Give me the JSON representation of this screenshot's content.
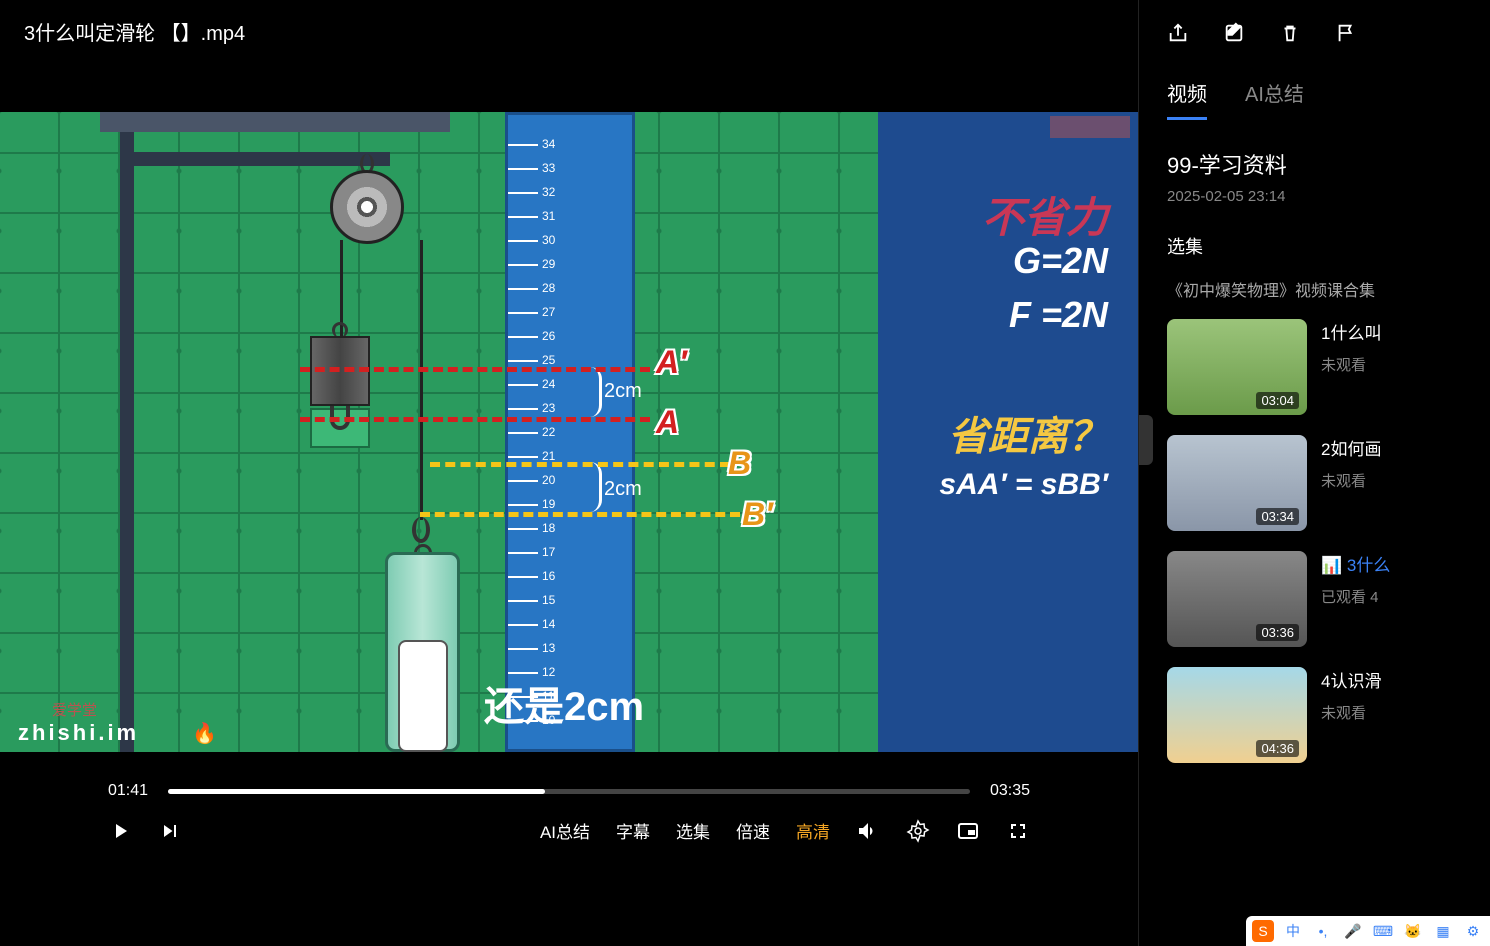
{
  "titlebar": {
    "title": "3什么叫定滑轮 【】.mp4"
  },
  "video": {
    "current_time": "01:41",
    "total_time": "03:35",
    "progress_pct": 47,
    "labels": {
      "A": "A",
      "Aprime": "A′",
      "B": "B",
      "Bprime": "B′",
      "cm1": "2cm",
      "cm2": "2cm",
      "big": "还是2cm"
    },
    "right_panel": {
      "l1": "不省力",
      "l2": "G=2N",
      "l3": "F =2N",
      "l4": "省距离？",
      "l5": "sAA′ = sBB′"
    },
    "watermark": "爱学堂",
    "watermark2": "zhishi.im",
    "ruler_max": 34
  },
  "controls": {
    "ai_summary": "AI总结",
    "subtitle": "字幕",
    "episodes": "选集",
    "speed": "倍速",
    "quality": "高清"
  },
  "sidebar": {
    "tabs": {
      "video": "视频",
      "ai": "AI总结"
    },
    "title": "99-学习资料",
    "date": "2025-02-05 23:14",
    "section": "选集",
    "sub": "《初中爆笑物理》视频课合集",
    "items": [
      {
        "title": "1什么叫",
        "duration": "03:04",
        "status": "未观看",
        "thumb": "t-a"
      },
      {
        "title": "2如何画",
        "duration": "03:34",
        "status": "未观看",
        "thumb": "t-b"
      },
      {
        "title": "3什么",
        "duration": "03:36",
        "status": "已观看 4",
        "thumb": "t-c",
        "playing": true
      },
      {
        "title": "4认识滑",
        "duration": "04:36",
        "status": "未观看",
        "thumb": "t-d"
      }
    ]
  }
}
